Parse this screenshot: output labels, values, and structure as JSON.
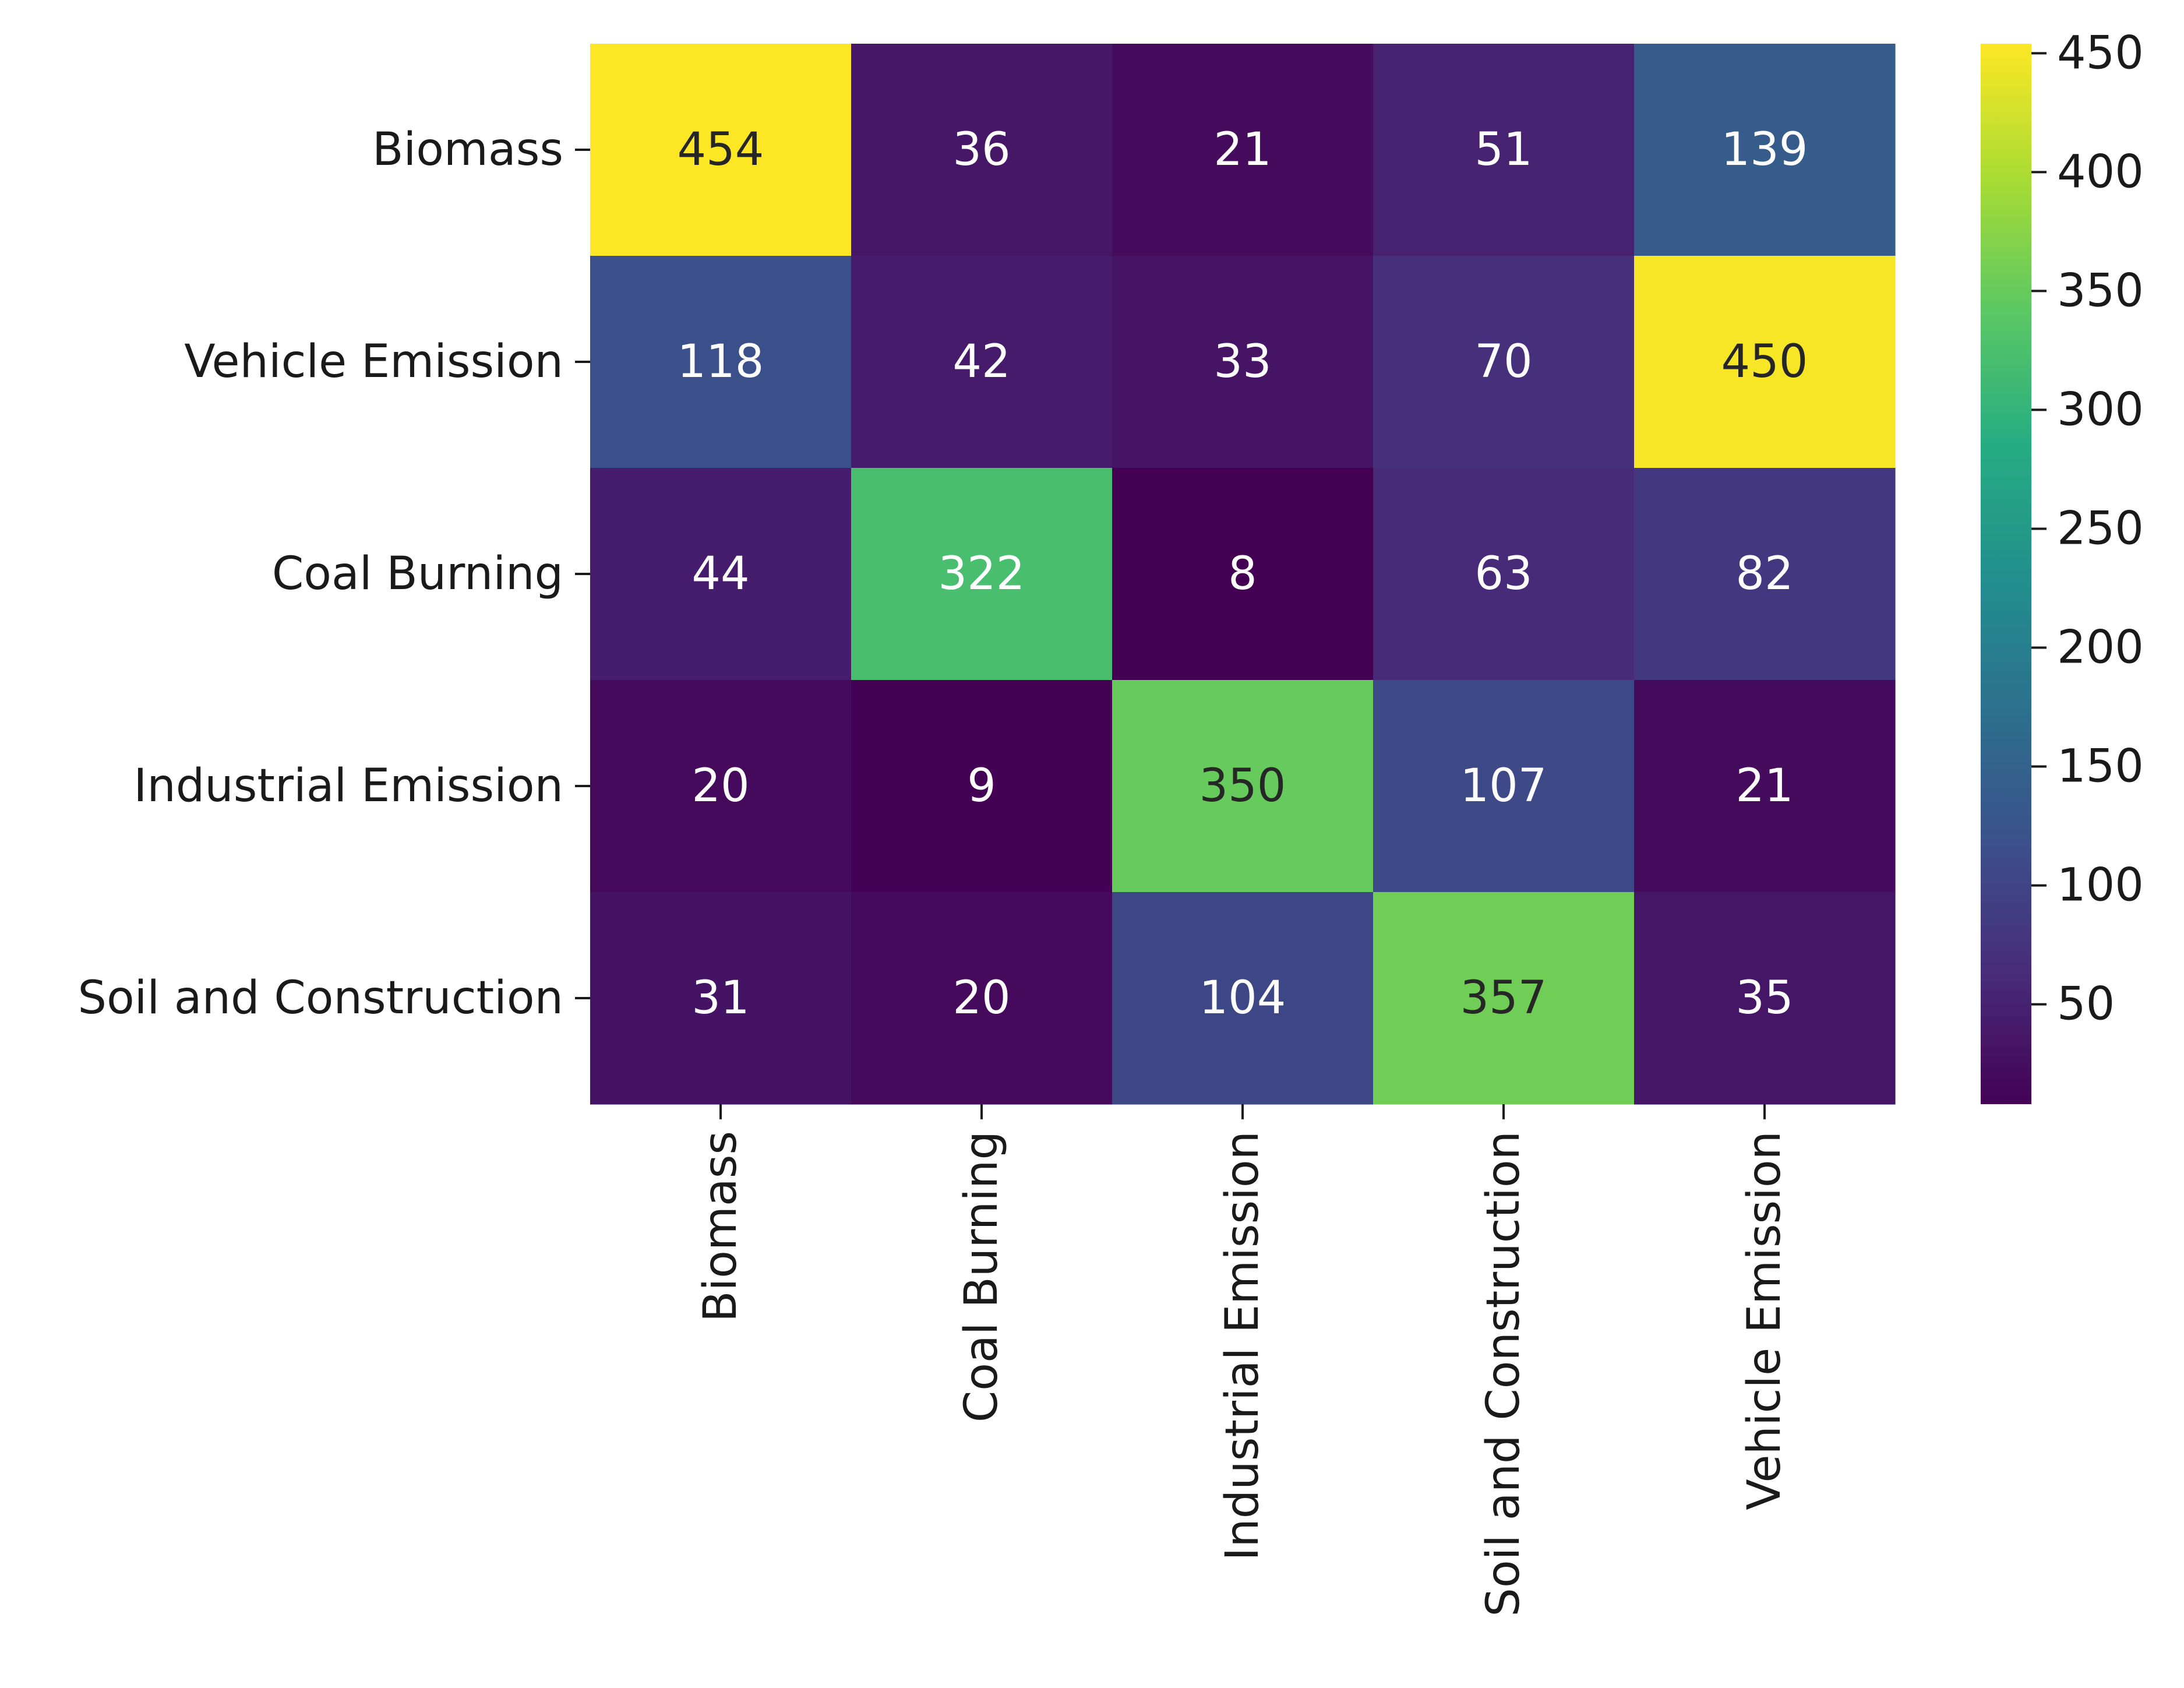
{
  "chart_data": {
    "type": "heatmap",
    "title": "",
    "xlabel": "",
    "ylabel": "",
    "rows": [
      "Biomass",
      "Vehicle Emission",
      "Coal Burning",
      "Industrial Emission",
      "Soil and Construction"
    ],
    "columns": [
      "Biomass",
      "Coal Burning",
      "Industrial Emission",
      "Soil and Construction",
      "Vehicle Emission"
    ],
    "values": [
      [
        454,
        36,
        21,
        51,
        139
      ],
      [
        118,
        42,
        33,
        70,
        450
      ],
      [
        44,
        322,
        8,
        63,
        82
      ],
      [
        20,
        9,
        350,
        107,
        21
      ],
      [
        31,
        20,
        104,
        357,
        35
      ]
    ],
    "colormap": "viridis",
    "color_range": [
      8,
      454
    ],
    "colorbar_ticks": [
      50,
      100,
      150,
      200,
      250,
      300,
      350,
      400,
      450
    ],
    "annotation_colors": {
      "light": "#ffffff",
      "dark": "#262626"
    }
  }
}
